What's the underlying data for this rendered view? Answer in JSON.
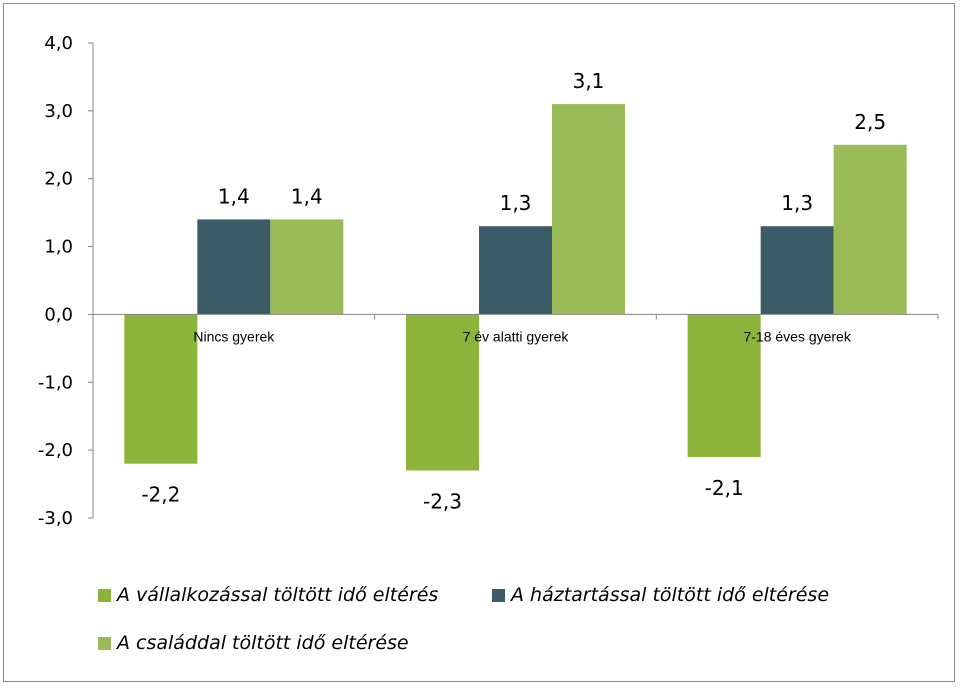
{
  "chart_data": {
    "type": "bar",
    "categories": [
      "Nincs gyerek",
      "7 év alatti gyerek",
      "7-18 éves gyerek"
    ],
    "ylim": [
      -3.0,
      4.0
    ],
    "yticks": [
      "4,0",
      "3,0",
      "2,0",
      "1,0",
      "0,0",
      "-1,0",
      "-2,0",
      "-3,0"
    ],
    "ytick_values": [
      4,
      3,
      2,
      1,
      0,
      -1,
      -2,
      -3
    ],
    "grid": false,
    "legend_position": "bottom",
    "series": [
      {
        "name": "A vállalkozással töltött idő eltérés",
        "color": "#8cb33a",
        "values": [
          -2.2,
          -2.3,
          -2.1
        ],
        "labels": [
          "-2,2",
          "-2,3",
          "-2,1"
        ]
      },
      {
        "name": "A háztartással töltött idő eltérése",
        "color": "#3b5b66",
        "values": [
          1.4,
          1.3,
          1.3
        ],
        "labels": [
          "1,4",
          "1,3",
          "1,3"
        ]
      },
      {
        "name": "A családdal töltött idő eltérése",
        "color": "#9bbb59",
        "values": [
          1.4,
          3.1,
          2.5
        ],
        "labels": [
          "1,4",
          "3,1",
          "2,5"
        ]
      }
    ]
  }
}
